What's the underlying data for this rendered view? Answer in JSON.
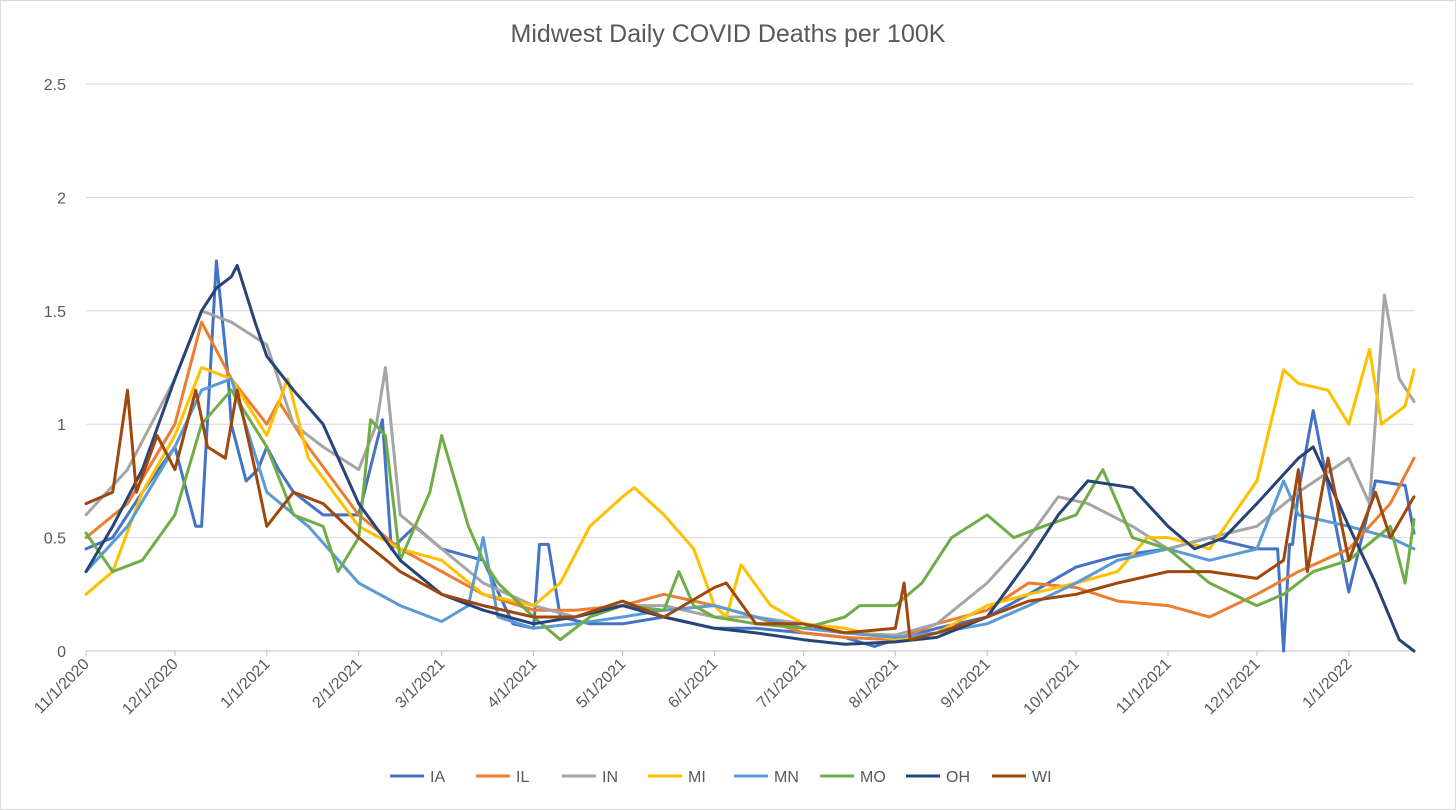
{
  "chart_data": {
    "type": "line",
    "title": "Midwest Daily COVID Deaths per 100K",
    "xlabel": "",
    "ylabel": "",
    "ylim": [
      0,
      2.5
    ],
    "yticks": [
      "0",
      "0.5",
      "1",
      "1.5",
      "2",
      "2.5"
    ],
    "xlim": [
      "2020-11-01",
      "2022-01-23"
    ],
    "xticks": [
      "11/1/2020",
      "12/1/2020",
      "1/1/2021",
      "2/1/2021",
      "3/1/2021",
      "4/1/2021",
      "5/1/2021",
      "6/1/2021",
      "7/1/2021",
      "8/1/2021",
      "9/1/2021",
      "10/1/2021",
      "11/1/2021",
      "12/1/2021",
      "1/1/2022"
    ],
    "grid": "horizontal",
    "legend": "bottom",
    "series": [
      {
        "name": "IA",
        "color": "#4472c4",
        "x": [
          "2020-11-01",
          "2020-11-10",
          "2020-11-20",
          "2020-12-01",
          "2020-12-08",
          "2020-12-10",
          "2020-12-15",
          "2020-12-19",
          "2020-12-20",
          "2020-12-25",
          "2020-12-29",
          "2021-01-01",
          "2021-01-05",
          "2021-01-10",
          "2021-01-20",
          "2021-02-01",
          "2021-02-09",
          "2021-02-12",
          "2021-02-20",
          "2021-03-01",
          "2021-03-15",
          "2021-03-25",
          "2021-04-01",
          "2021-04-03",
          "2021-04-06",
          "2021-04-10",
          "2021-04-20",
          "2021-05-01",
          "2021-05-15",
          "2021-06-01",
          "2021-06-15",
          "2021-07-01",
          "2021-07-15",
          "2021-07-25",
          "2021-08-01",
          "2021-08-15",
          "2021-09-01",
          "2021-09-15",
          "2021-10-01",
          "2021-10-15",
          "2021-11-01",
          "2021-11-15",
          "2021-12-01",
          "2021-12-08",
          "2021-12-10",
          "2021-12-12",
          "2021-12-13",
          "2021-12-15",
          "2021-12-20",
          "2022-01-01",
          "2022-01-10",
          "2022-01-20",
          "2022-01-23"
        ],
        "y": [
          0.45,
          0.5,
          0.7,
          0.9,
          0.55,
          0.55,
          1.72,
          1.2,
          1.0,
          0.75,
          0.8,
          0.9,
          0.8,
          0.7,
          0.6,
          0.6,
          1.02,
          0.45,
          0.55,
          0.45,
          0.4,
          0.12,
          0.1,
          0.47,
          0.47,
          0.15,
          0.12,
          0.12,
          0.15,
          0.1,
          0.1,
          0.08,
          0.06,
          0.02,
          0.05,
          0.1,
          0.15,
          0.25,
          0.37,
          0.42,
          0.45,
          0.5,
          0.45,
          0.45,
          0.0,
          0.47,
          0.47,
          0.7,
          1.06,
          0.26,
          0.75,
          0.73,
          0.52
        ]
      },
      {
        "name": "IL",
        "color": "#ed7d31",
        "x": [
          "2020-11-01",
          "2020-11-15",
          "2020-12-01",
          "2020-12-10",
          "2020-12-20",
          "2021-01-01",
          "2021-01-05",
          "2021-01-15",
          "2021-02-01",
          "2021-02-15",
          "2021-03-01",
          "2021-03-15",
          "2021-04-01",
          "2021-04-15",
          "2021-05-01",
          "2021-05-15",
          "2021-06-01",
          "2021-06-15",
          "2021-07-01",
          "2021-07-15",
          "2021-08-01",
          "2021-08-15",
          "2021-09-01",
          "2021-09-15",
          "2021-10-01",
          "2021-10-15",
          "2021-11-01",
          "2021-11-15",
          "2021-12-01",
          "2021-12-15",
          "2022-01-01",
          "2022-01-15",
          "2022-01-23"
        ],
        "y": [
          0.5,
          0.65,
          1.0,
          1.45,
          1.2,
          1.0,
          1.1,
          0.9,
          0.6,
          0.45,
          0.35,
          0.25,
          0.18,
          0.18,
          0.2,
          0.25,
          0.2,
          0.15,
          0.08,
          0.06,
          0.05,
          0.12,
          0.18,
          0.3,
          0.28,
          0.22,
          0.2,
          0.15,
          0.25,
          0.35,
          0.45,
          0.65,
          0.85
        ]
      },
      {
        "name": "IN",
        "color": "#a5a5a5",
        "x": [
          "2020-11-01",
          "2020-11-15",
          "2020-12-01",
          "2020-12-10",
          "2020-12-20",
          "2021-01-01",
          "2021-01-10",
          "2021-01-20",
          "2021-02-01",
          "2021-02-07",
          "2021-02-10",
          "2021-02-15",
          "2021-03-01",
          "2021-03-15",
          "2021-04-01",
          "2021-04-15",
          "2021-05-01",
          "2021-05-15",
          "2021-06-01",
          "2021-06-15",
          "2021-07-01",
          "2021-07-15",
          "2021-08-01",
          "2021-08-15",
          "2021-09-01",
          "2021-09-15",
          "2021-09-25",
          "2021-10-05",
          "2021-10-20",
          "2021-11-01",
          "2021-11-15",
          "2021-12-01",
          "2021-12-15",
          "2022-01-01",
          "2022-01-08",
          "2022-01-13",
          "2022-01-18",
          "2022-01-23"
        ],
        "y": [
          0.6,
          0.8,
          1.2,
          1.5,
          1.45,
          1.35,
          1.0,
          0.9,
          0.8,
          1.0,
          1.25,
          0.6,
          0.45,
          0.3,
          0.2,
          0.15,
          0.2,
          0.2,
          0.15,
          0.15,
          0.12,
          0.08,
          0.07,
          0.12,
          0.3,
          0.5,
          0.68,
          0.65,
          0.55,
          0.45,
          0.5,
          0.55,
          0.7,
          0.85,
          0.65,
          1.57,
          1.2,
          1.1
        ]
      },
      {
        "name": "MI",
        "color": "#ffc000",
        "x": [
          "2020-11-01",
          "2020-11-10",
          "2020-11-20",
          "2020-12-01",
          "2020-12-10",
          "2020-12-20",
          "2021-01-01",
          "2021-01-08",
          "2021-01-15",
          "2021-02-01",
          "2021-02-15",
          "2021-03-01",
          "2021-03-15",
          "2021-04-01",
          "2021-04-10",
          "2021-04-20",
          "2021-05-01",
          "2021-05-05",
          "2021-05-15",
          "2021-05-25",
          "2021-06-01",
          "2021-06-05",
          "2021-06-10",
          "2021-06-20",
          "2021-07-01",
          "2021-07-15",
          "2021-08-01",
          "2021-08-15",
          "2021-09-01",
          "2021-09-15",
          "2021-10-01",
          "2021-10-15",
          "2021-10-25",
          "2021-11-01",
          "2021-11-15",
          "2021-12-01",
          "2021-12-10",
          "2021-12-15",
          "2021-12-25",
          "2022-01-01",
          "2022-01-08",
          "2022-01-12",
          "2022-01-20",
          "2022-01-23"
        ],
        "y": [
          0.25,
          0.35,
          0.7,
          0.95,
          1.25,
          1.2,
          0.95,
          1.2,
          0.85,
          0.55,
          0.45,
          0.4,
          0.25,
          0.2,
          0.3,
          0.55,
          0.68,
          0.72,
          0.6,
          0.45,
          0.2,
          0.15,
          0.38,
          0.2,
          0.12,
          0.1,
          0.05,
          0.08,
          0.2,
          0.25,
          0.3,
          0.35,
          0.5,
          0.5,
          0.45,
          0.75,
          1.24,
          1.18,
          1.15,
          1.0,
          1.33,
          1.0,
          1.08,
          1.24
        ]
      },
      {
        "name": "MN",
        "color": "#5b9bd5",
        "x": [
          "2020-11-01",
          "2020-11-15",
          "2020-12-01",
          "2020-12-10",
          "2020-12-20",
          "2021-01-01",
          "2021-01-15",
          "2021-02-01",
          "2021-02-15",
          "2021-03-01",
          "2021-03-10",
          "2021-03-15",
          "2021-03-20",
          "2021-04-01",
          "2021-04-15",
          "2021-05-01",
          "2021-05-15",
          "2021-06-01",
          "2021-06-15",
          "2021-07-01",
          "2021-07-15",
          "2021-08-01",
          "2021-08-15",
          "2021-09-01",
          "2021-09-15",
          "2021-10-01",
          "2021-10-15",
          "2021-11-01",
          "2021-11-15",
          "2021-12-01",
          "2021-12-10",
          "2021-12-15",
          "2022-01-01",
          "2022-01-15",
          "2022-01-23"
        ],
        "y": [
          0.35,
          0.55,
          0.9,
          1.15,
          1.2,
          0.7,
          0.55,
          0.3,
          0.2,
          0.13,
          0.2,
          0.5,
          0.15,
          0.1,
          0.12,
          0.15,
          0.18,
          0.2,
          0.15,
          0.1,
          0.08,
          0.06,
          0.08,
          0.12,
          0.2,
          0.3,
          0.4,
          0.45,
          0.4,
          0.45,
          0.75,
          0.6,
          0.55,
          0.5,
          0.45
        ]
      },
      {
        "name": "MO",
        "color": "#70ad47",
        "x": [
          "2020-11-01",
          "2020-11-10",
          "2020-11-20",
          "2020-12-01",
          "2020-12-10",
          "2020-12-20",
          "2021-01-01",
          "2021-01-10",
          "2021-01-20",
          "2021-01-25",
          "2021-02-01",
          "2021-02-05",
          "2021-02-10",
          "2021-02-15",
          "2021-02-25",
          "2021-03-01",
          "2021-03-10",
          "2021-03-15",
          "2021-03-20",
          "2021-04-01",
          "2021-04-10",
          "2021-04-20",
          "2021-05-01",
          "2021-05-15",
          "2021-05-20",
          "2021-05-25",
          "2021-06-01",
          "2021-06-15",
          "2021-07-01",
          "2021-07-15",
          "2021-07-20",
          "2021-08-01",
          "2021-08-10",
          "2021-08-20",
          "2021-09-01",
          "2021-09-10",
          "2021-09-20",
          "2021-10-01",
          "2021-10-10",
          "2021-10-20",
          "2021-11-01",
          "2021-11-15",
          "2021-12-01",
          "2021-12-10",
          "2021-12-20",
          "2022-01-01",
          "2022-01-15",
          "2022-01-20",
          "2022-01-23"
        ],
        "y": [
          0.52,
          0.35,
          0.4,
          0.6,
          1.0,
          1.15,
          0.9,
          0.6,
          0.55,
          0.35,
          0.5,
          1.02,
          0.95,
          0.4,
          0.7,
          0.95,
          0.55,
          0.4,
          0.3,
          0.15,
          0.05,
          0.15,
          0.2,
          0.18,
          0.35,
          0.2,
          0.15,
          0.12,
          0.1,
          0.15,
          0.2,
          0.2,
          0.3,
          0.5,
          0.6,
          0.5,
          0.55,
          0.6,
          0.8,
          0.5,
          0.45,
          0.3,
          0.2,
          0.25,
          0.35,
          0.4,
          0.55,
          0.3,
          0.58
        ]
      },
      {
        "name": "OH",
        "color": "#264478",
        "x": [
          "2020-11-01",
          "2020-11-10",
          "2020-11-20",
          "2020-12-01",
          "2020-12-10",
          "2020-12-15",
          "2020-12-20",
          "2020-12-22",
          "2020-12-28",
          "2021-01-01",
          "2021-01-10",
          "2021-01-20",
          "2021-02-01",
          "2021-02-15",
          "2021-03-01",
          "2021-03-15",
          "2021-04-01",
          "2021-04-15",
          "2021-05-01",
          "2021-05-15",
          "2021-06-01",
          "2021-06-15",
          "2021-07-01",
          "2021-07-15",
          "2021-08-01",
          "2021-08-15",
          "2021-09-01",
          "2021-09-15",
          "2021-09-25",
          "2021-10-05",
          "2021-10-20",
          "2021-11-01",
          "2021-11-10",
          "2021-11-20",
          "2021-12-01",
          "2021-12-15",
          "2021-12-20",
          "2022-01-01",
          "2022-01-10",
          "2022-01-18",
          "2022-01-23"
        ],
        "y": [
          0.35,
          0.55,
          0.8,
          1.2,
          1.5,
          1.6,
          1.65,
          1.7,
          1.45,
          1.3,
          1.15,
          1.0,
          0.65,
          0.4,
          0.25,
          0.18,
          0.12,
          0.15,
          0.2,
          0.15,
          0.1,
          0.08,
          0.05,
          0.03,
          0.04,
          0.06,
          0.15,
          0.4,
          0.6,
          0.75,
          0.72,
          0.55,
          0.45,
          0.5,
          0.65,
          0.85,
          0.9,
          0.55,
          0.3,
          0.05,
          0.0
        ]
      },
      {
        "name": "WI",
        "color": "#9e480e",
        "x": [
          "2020-11-01",
          "2020-11-10",
          "2020-11-15",
          "2020-11-18",
          "2020-11-25",
          "2020-12-01",
          "2020-12-08",
          "2020-12-12",
          "2020-12-18",
          "2020-12-22",
          "2020-12-28",
          "2021-01-01",
          "2021-01-10",
          "2021-01-20",
          "2021-02-01",
          "2021-02-15",
          "2021-03-01",
          "2021-03-15",
          "2021-04-01",
          "2021-04-15",
          "2021-05-01",
          "2021-05-15",
          "2021-06-01",
          "2021-06-05",
          "2021-06-15",
          "2021-07-01",
          "2021-07-15",
          "2021-08-01",
          "2021-08-04",
          "2021-08-06",
          "2021-08-15",
          "2021-09-01",
          "2021-09-15",
          "2021-10-01",
          "2021-10-15",
          "2021-11-01",
          "2021-11-15",
          "2021-12-01",
          "2021-12-10",
          "2021-12-15",
          "2021-12-18",
          "2021-12-25",
          "2022-01-01",
          "2022-01-10",
          "2022-01-15",
          "2022-01-23"
        ],
        "y": [
          0.65,
          0.7,
          1.15,
          0.7,
          0.95,
          0.8,
          1.15,
          0.9,
          0.85,
          1.15,
          0.8,
          0.55,
          0.7,
          0.65,
          0.5,
          0.35,
          0.25,
          0.2,
          0.15,
          0.15,
          0.22,
          0.15,
          0.28,
          0.3,
          0.12,
          0.12,
          0.08,
          0.1,
          0.3,
          0.05,
          0.08,
          0.15,
          0.22,
          0.25,
          0.3,
          0.35,
          0.35,
          0.32,
          0.4,
          0.8,
          0.35,
          0.85,
          0.4,
          0.7,
          0.5,
          0.68
        ]
      }
    ]
  }
}
